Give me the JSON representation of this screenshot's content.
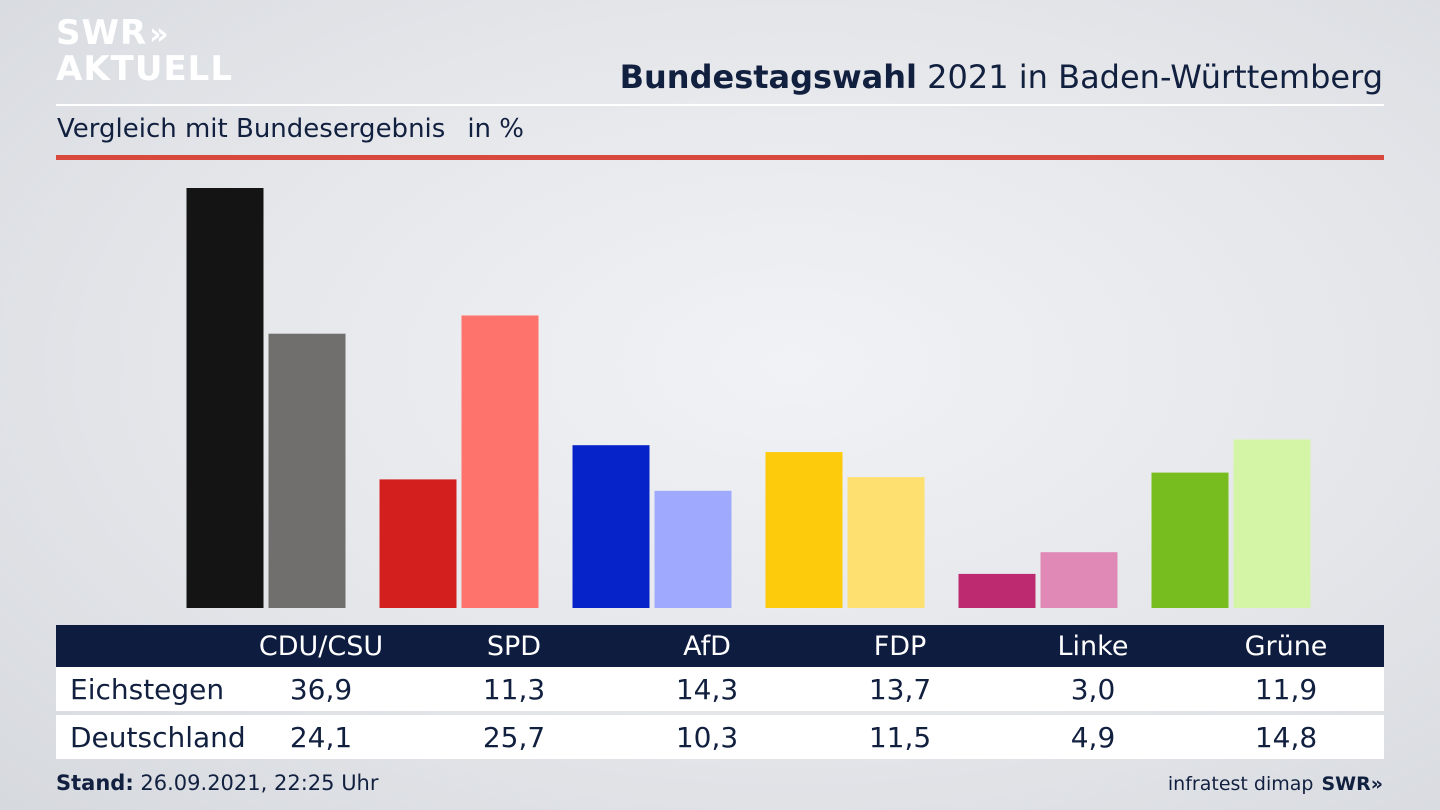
{
  "logo": {
    "line1": "SWR",
    "line1_chevrons": "»",
    "line2": "AKTUELL"
  },
  "header": {
    "title_bold": "Bundestagswahl",
    "title_rest": "2021 in Baden-Württemberg",
    "subtitle": "Vergleich mit Bundesergebnis",
    "unit": "in %"
  },
  "colors": {
    "accent_rule": "#d8483c",
    "table_header": "#0e1d3f",
    "text": "#12203f"
  },
  "chart_data": {
    "type": "bar",
    "categories": [
      "CDU/CSU",
      "SPD",
      "AfD",
      "FDP",
      "Linke",
      "Grüne"
    ],
    "series": [
      {
        "name": "Eichstegen",
        "values": [
          36.9,
          11.3,
          14.3,
          13.7,
          3.0,
          11.9
        ],
        "colors": [
          "#141414",
          "#d41f1f",
          "#0523c9",
          "#fdcb0c",
          "#bd2a6f",
          "#78bd1f"
        ]
      },
      {
        "name": "Deutschland",
        "values": [
          24.1,
          25.7,
          10.3,
          11.5,
          4.9,
          14.8
        ],
        "colors": [
          "#716f6d",
          "#fe736c",
          "#9faafe",
          "#fde06f",
          "#e089b6",
          "#d4f5a6"
        ]
      }
    ],
    "title": "Bundestagswahl 2021 in Baden-Württemberg",
    "subtitle": "Vergleich mit Bundesergebnis",
    "ylabel": "in %",
    "ylim": [
      0,
      36.9
    ],
    "grid": false
  },
  "table": {
    "headers": [
      "CDU/CSU",
      "SPD",
      "AfD",
      "FDP",
      "Linke",
      "Grüne"
    ],
    "rows": [
      {
        "label": "Eichstegen",
        "values": [
          "36,9",
          "11,3",
          "14,3",
          "13,7",
          "3,0",
          "11,9"
        ]
      },
      {
        "label": "Deutschland",
        "values": [
          "24,1",
          "25,7",
          "10,3",
          "11,5",
          "4,9",
          "14,8"
        ]
      }
    ]
  },
  "footer": {
    "stand_label": "Stand:",
    "stand_value": "26.09.2021, 22:25 Uhr",
    "source": "infratest dimap",
    "brand": "SWR»"
  }
}
